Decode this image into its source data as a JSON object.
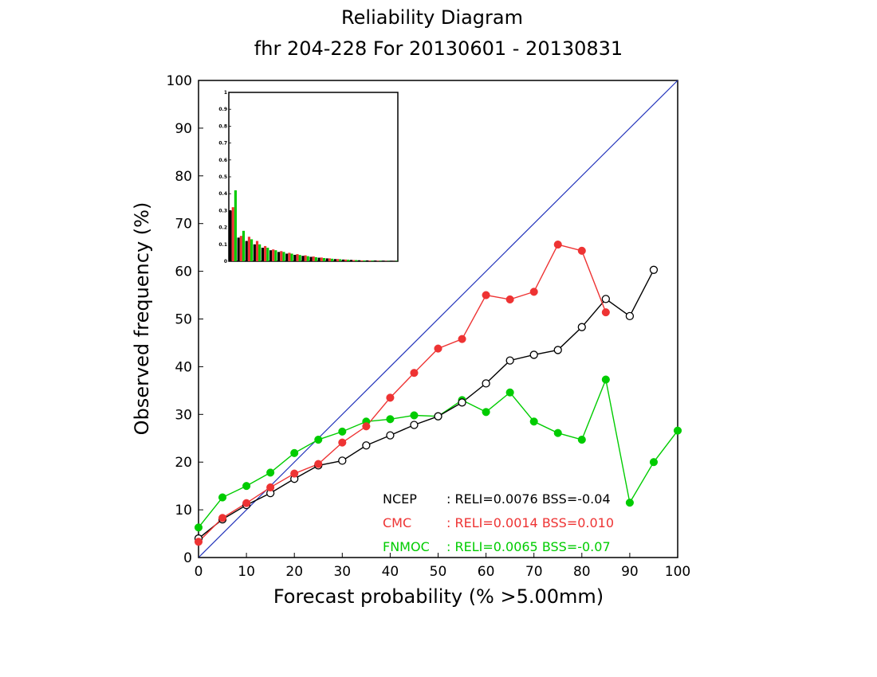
{
  "titles": {
    "title": "Reliability Diagram",
    "subtitle": "fhr 204-228 For 20130601 - 20130831"
  },
  "chart_data": {
    "type": "line",
    "xlabel": "Forecast probability (% >5.00mm)",
    "ylabel": "Observed frequency (%)",
    "xlim": [
      0,
      100
    ],
    "ylim": [
      0,
      100
    ],
    "xticks": [
      "0",
      "10",
      "20",
      "30",
      "40",
      "50",
      "60",
      "70",
      "80",
      "90",
      "100"
    ],
    "yticks": [
      "0",
      "10",
      "20",
      "30",
      "40",
      "50",
      "60",
      "70",
      "80",
      "90",
      "100"
    ],
    "diagonal_color": "#2233bb",
    "series": [
      {
        "name": "NCEP",
        "color": "#000000",
        "marker": "open-circle",
        "x": [
          0,
          5,
          10,
          15,
          20,
          25,
          30,
          35,
          40,
          45,
          50,
          55,
          60,
          65,
          70,
          75,
          80,
          85,
          90,
          95
        ],
        "y": [
          4,
          8,
          11,
          13.5,
          16.5,
          19.3,
          20.3,
          23.5,
          25.6,
          27.8,
          29.6,
          32.5,
          36.5,
          41.3,
          42.5,
          43.5,
          48.3,
          54.2,
          50.6,
          60.3
        ]
      },
      {
        "name": "CMC",
        "color": "#ee3333",
        "marker": "filled-circle",
        "x": [
          0,
          5,
          10,
          15,
          20,
          25,
          30,
          35,
          40,
          45,
          50,
          55,
          60,
          65,
          70,
          75,
          80,
          85
        ],
        "y": [
          3.3,
          8.3,
          11.4,
          14.7,
          17.6,
          19.6,
          24.1,
          27.5,
          33.5,
          38.7,
          43.8,
          45.8,
          55,
          54.1,
          55.7,
          65.6,
          64.3,
          51.4
        ]
      },
      {
        "name": "FNMOC",
        "color": "#00cc00",
        "marker": "filled-circle",
        "x": [
          0,
          5,
          10,
          15,
          20,
          25,
          30,
          35,
          40,
          45,
          50,
          55,
          60,
          65,
          70,
          75,
          80,
          85,
          90,
          95,
          100
        ],
        "y": [
          6.3,
          12.6,
          15,
          17.8,
          21.9,
          24.7,
          26.4,
          28.5,
          29,
          29.8,
          29.6,
          33,
          30.5,
          34.6,
          28.5,
          26.1,
          24.7,
          37.3,
          11.5,
          20,
          26.6
        ]
      }
    ],
    "legend": [
      {
        "label": "NCEP",
        "stats": ": RELI=0.0076  BSS=-0.04",
        "color": "#000000"
      },
      {
        "label": "CMC",
        "stats": ": RELI=0.0014  BSS=0.010",
        "color": "#ee3333"
      },
      {
        "label": "FNMOC",
        "stats": ": RELI=0.0065  BSS=-0.07",
        "color": "#00cc00"
      }
    ],
    "inset_histogram": {
      "type": "bar",
      "ylim": [
        0,
        1
      ],
      "yticks": [
        "0",
        "0.1",
        "0.2",
        "0.3",
        "0.4",
        "0.5",
        "0.6",
        "0.7",
        "0.8",
        "0.9",
        "1"
      ],
      "series": [
        {
          "name": "NCEP",
          "color": "#000000",
          "values": [
            0.3,
            0.14,
            0.12,
            0.1,
            0.08,
            0.065,
            0.055,
            0.045,
            0.038,
            0.032,
            0.026,
            0.021,
            0.017,
            0.013,
            0.01,
            0.008,
            0.006,
            0.005,
            0.004,
            0.003,
            0.002
          ]
        },
        {
          "name": "CMC",
          "color": "#ee3333",
          "values": [
            0.32,
            0.15,
            0.145,
            0.12,
            0.09,
            0.07,
            0.06,
            0.05,
            0.042,
            0.035,
            0.028,
            0.022,
            0.017,
            0.013,
            0.01,
            0.007,
            0.005,
            0.004,
            0.003,
            0.002,
            0.001
          ]
        },
        {
          "name": "FNMOC",
          "color": "#00cc00",
          "values": [
            0.42,
            0.18,
            0.13,
            0.1,
            0.08,
            0.065,
            0.055,
            0.045,
            0.037,
            0.03,
            0.024,
            0.019,
            0.015,
            0.012,
            0.009,
            0.007,
            0.005,
            0.004,
            0.003,
            0.002,
            0.002
          ]
        }
      ]
    }
  }
}
